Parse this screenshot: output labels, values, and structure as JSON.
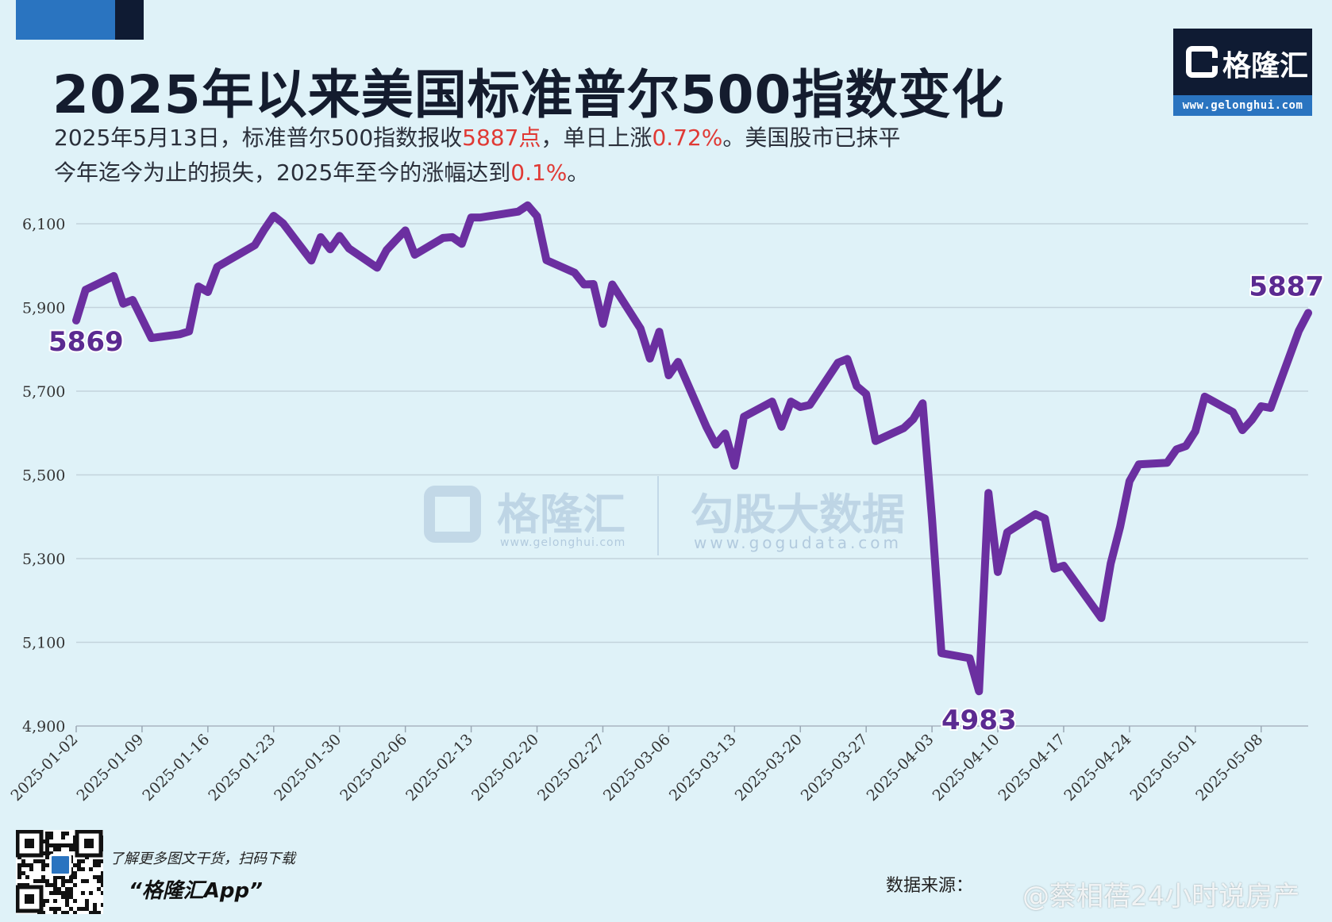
{
  "header": {
    "title": "2025年以来美国标准普尔500指数变化",
    "subtitle_part1": "2025年5月13日，标准普尔500指数报收",
    "subtitle_hl1": "5887点",
    "subtitle_part2": "，单日上涨",
    "subtitle_hl2": "0.72%",
    "subtitle_part3": "。美国股市已抹平今年迄今为止的损失，2025年至今的涨幅达到",
    "subtitle_hl3": "0.1%",
    "subtitle_part4": "。",
    "highlight_color": "#e03a35"
  },
  "logo": {
    "text": "格隆汇",
    "url": "www.gelonghui.com"
  },
  "watermark": {
    "text1": "格隆汇",
    "url1": "www.gelonghui.com",
    "text2": "勾股大数据",
    "url2": "www.gogudata.com"
  },
  "footer": {
    "note": "了解更多图文干货，扫码下载",
    "app": "“格隆汇App”",
    "source": "数据来源：",
    "weibo": "@蔡相蓓24小时说房产"
  },
  "chart_data": {
    "type": "line",
    "title": "2025年以来美国标准普尔500指数变化",
    "xlabel": "",
    "ylabel": "",
    "ylim": [
      4900,
      6100
    ],
    "yticks": [
      4900,
      5100,
      5300,
      5500,
      5700,
      5900,
      6100
    ],
    "ytick_labels": [
      "4,900",
      "5,100",
      "5,300",
      "5,500",
      "5,700",
      "5,900",
      "6,100"
    ],
    "xlim": [
      "2025-01-02",
      "2025-05-13"
    ],
    "xticks": [
      "2025-01-02",
      "2025-01-09",
      "2025-01-16",
      "2025-01-23",
      "2025-01-30",
      "2025-02-06",
      "2025-02-13",
      "2025-02-20",
      "2025-02-27",
      "2025-03-06",
      "2025-03-13",
      "2025-03-20",
      "2025-03-27",
      "2025-04-03",
      "2025-04-10",
      "2025-04-17",
      "2025-04-24",
      "2025-05-01",
      "2025-05-08"
    ],
    "grid": true,
    "line_color": "#6b2fa0",
    "series": [
      {
        "name": "",
        "points": [
          [
            "2025-01-02",
            5869
          ],
          [
            "2025-01-03",
            5942
          ],
          [
            "2025-01-06",
            5975
          ],
          [
            "2025-01-07",
            5909
          ],
          [
            "2025-01-08",
            5918
          ],
          [
            "2025-01-10",
            5827
          ],
          [
            "2025-01-13",
            5836
          ],
          [
            "2025-01-14",
            5843
          ],
          [
            "2025-01-15",
            5950
          ],
          [
            "2025-01-16",
            5937
          ],
          [
            "2025-01-17",
            5997
          ],
          [
            "2025-01-21",
            6049
          ],
          [
            "2025-01-22",
            6086
          ],
          [
            "2025-01-23",
            6119
          ],
          [
            "2025-01-24",
            6101
          ],
          [
            "2025-01-27",
            6012
          ],
          [
            "2025-01-28",
            6068
          ],
          [
            "2025-01-29",
            6039
          ],
          [
            "2025-01-30",
            6071
          ],
          [
            "2025-01-31",
            6041
          ],
          [
            "2025-02-03",
            5995
          ],
          [
            "2025-02-04",
            6037
          ],
          [
            "2025-02-05",
            6061
          ],
          [
            "2025-02-06",
            6084
          ],
          [
            "2025-02-07",
            6026
          ],
          [
            "2025-02-10",
            6066
          ],
          [
            "2025-02-11",
            6068
          ],
          [
            "2025-02-12",
            6052
          ],
          [
            "2025-02-13",
            6115
          ],
          [
            "2025-02-14",
            6115
          ],
          [
            "2025-02-18",
            6129
          ],
          [
            "2025-02-19",
            6144
          ],
          [
            "2025-02-20",
            6118
          ],
          [
            "2025-02-21",
            6013
          ],
          [
            "2025-02-24",
            5983
          ],
          [
            "2025-02-25",
            5955
          ],
          [
            "2025-02-26",
            5956
          ],
          [
            "2025-02-27",
            5861
          ],
          [
            "2025-02-28",
            5955
          ],
          [
            "2025-03-03",
            5850
          ],
          [
            "2025-03-04",
            5778
          ],
          [
            "2025-03-05",
            5842
          ],
          [
            "2025-03-06",
            5738
          ],
          [
            "2025-03-07",
            5770
          ],
          [
            "2025-03-10",
            5615
          ],
          [
            "2025-03-11",
            5572
          ],
          [
            "2025-03-12",
            5599
          ],
          [
            "2025-03-13",
            5522
          ],
          [
            "2025-03-14",
            5639
          ],
          [
            "2025-03-17",
            5675
          ],
          [
            "2025-03-18",
            5615
          ],
          [
            "2025-03-19",
            5675
          ],
          [
            "2025-03-20",
            5662
          ],
          [
            "2025-03-21",
            5667
          ],
          [
            "2025-03-24",
            5768
          ],
          [
            "2025-03-25",
            5777
          ],
          [
            "2025-03-26",
            5712
          ],
          [
            "2025-03-27",
            5693
          ],
          [
            "2025-03-28",
            5581
          ],
          [
            "2025-03-31",
            5612
          ],
          [
            "2025-04-01",
            5633
          ],
          [
            "2025-04-02",
            5671
          ],
          [
            "2025-04-03",
            5396
          ],
          [
            "2025-04-04",
            5074
          ],
          [
            "2025-04-07",
            5062
          ],
          [
            "2025-04-08",
            4983
          ],
          [
            "2025-04-09",
            5457
          ],
          [
            "2025-04-10",
            5268
          ],
          [
            "2025-04-11",
            5363
          ],
          [
            "2025-04-14",
            5406
          ],
          [
            "2025-04-15",
            5396
          ],
          [
            "2025-04-16",
            5276
          ],
          [
            "2025-04-17",
            5283
          ],
          [
            "2025-04-21",
            5158
          ],
          [
            "2025-04-22",
            5288
          ],
          [
            "2025-04-23",
            5376
          ],
          [
            "2025-04-24",
            5485
          ],
          [
            "2025-04-25",
            5525
          ],
          [
            "2025-04-28",
            5529
          ],
          [
            "2025-04-29",
            5561
          ],
          [
            "2025-04-30",
            5569
          ],
          [
            "2025-05-01",
            5604
          ],
          [
            "2025-05-02",
            5687
          ],
          [
            "2025-05-05",
            5650
          ],
          [
            "2025-05-06",
            5607
          ],
          [
            "2025-05-07",
            5631
          ],
          [
            "2025-05-08",
            5664
          ],
          [
            "2025-05-09",
            5660
          ],
          [
            "2025-05-12",
            5844
          ],
          [
            "2025-05-13",
            5887
          ]
        ]
      }
    ],
    "annotations": [
      {
        "label": "5869",
        "x": "2025-01-02",
        "y": 5869,
        "anchor": "below"
      },
      {
        "label": "4983",
        "x": "2025-04-08",
        "y": 4983,
        "anchor": "below"
      },
      {
        "label": "5887",
        "x": "2025-05-13",
        "y": 5887,
        "anchor": "above"
      }
    ]
  }
}
